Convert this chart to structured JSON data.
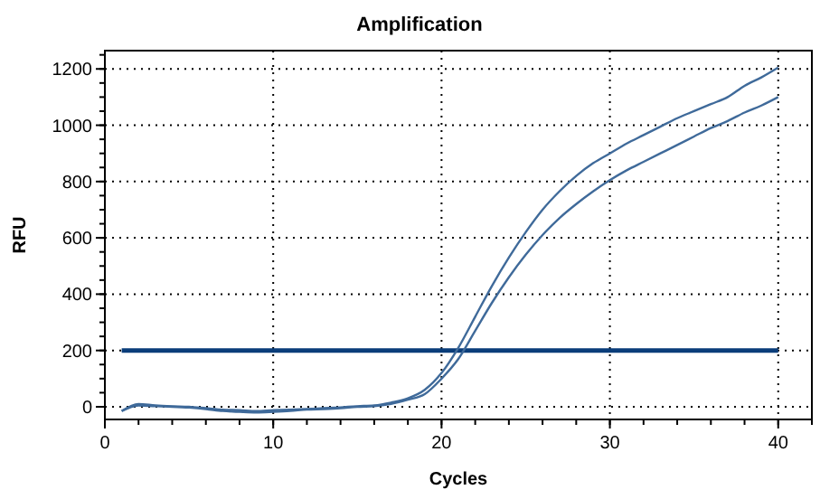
{
  "chart_data": {
    "type": "line",
    "title": "Amplification",
    "xlabel": "Cycles",
    "ylabel": "RFU",
    "x": [
      1,
      2,
      3,
      4,
      5,
      6,
      7,
      8,
      9,
      10,
      11,
      12,
      13,
      14,
      15,
      16,
      17,
      18,
      19,
      20,
      21,
      22,
      23,
      24,
      25,
      26,
      27,
      28,
      29,
      30,
      31,
      32,
      33,
      34,
      35,
      36,
      37,
      38,
      39,
      40
    ],
    "series": [
      {
        "color": "#3f6a9a",
        "values": [
          -15,
          10,
          5,
          2,
          0,
          -5,
          -10,
          -12,
          -15,
          -12,
          -10,
          -8,
          -5,
          -2,
          2,
          5,
          15,
          30,
          60,
          120,
          210,
          320,
          430,
          530,
          620,
          700,
          765,
          820,
          865,
          900,
          935,
          965,
          995,
          1025,
          1050,
          1075,
          1100,
          1140,
          1170,
          1205
        ]
      },
      {
        "color": "#3f6a9a",
        "values": [
          -15,
          5,
          2,
          0,
          -3,
          -8,
          -15,
          -18,
          -20,
          -18,
          -15,
          -10,
          -8,
          -5,
          0,
          2,
          10,
          25,
          45,
          100,
          170,
          270,
          370,
          460,
          540,
          610,
          670,
          720,
          765,
          805,
          840,
          870,
          900,
          930,
          960,
          990,
          1015,
          1045,
          1070,
          1100
        ]
      }
    ],
    "xlim": [
      0,
      42
    ],
    "xticks": [
      0,
      10,
      20,
      30,
      40
    ],
    "ylim": [
      -45,
      1265
    ],
    "yticks": [
      0,
      200,
      400,
      600,
      800,
      1000,
      1200
    ],
    "grid": true,
    "marker": "none",
    "line_style": "solid",
    "ref_lines": [
      {
        "axis": "y",
        "value": 200,
        "color": "#0a3d7a"
      }
    ]
  }
}
